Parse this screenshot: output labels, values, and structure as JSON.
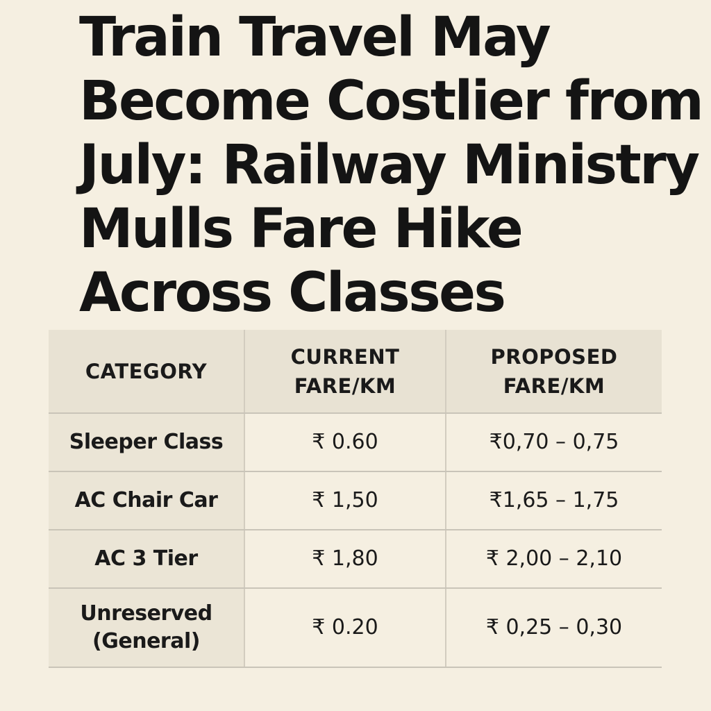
{
  "headline": {
    "lines": [
      "Train Travel May",
      "Become Costlier from",
      "July: Railway Ministry",
      "Mulls Fare Hike",
      "Across Classes"
    ]
  },
  "table": {
    "headers": [
      {
        "lines": [
          "CATEGORY"
        ]
      },
      {
        "lines": [
          "CURRENT",
          "FARE/KM"
        ]
      },
      {
        "lines": [
          "PROPOSED",
          "FARE/KM"
        ]
      }
    ],
    "rows": [
      {
        "category": [
          "Sleeper Class"
        ],
        "current": "₹ 0.60",
        "proposed": "₹0,70 – 0,75"
      },
      {
        "category": [
          "AC Chair Car"
        ],
        "current": "₹ 1,50",
        "proposed": "₹1,65 – 1,75"
      },
      {
        "category": [
          "AC 3 Tier"
        ],
        "current": "₹ 1,80",
        "proposed": "₹ 2,00 – 2,10"
      },
      {
        "category": [
          "Unreserved",
          "(General)"
        ],
        "current": "₹ 0.20",
        "proposed": "₹ 0,25 – 0,30"
      }
    ]
  },
  "colors": {
    "background": "#f5efe1",
    "header_bg": "#e8e2d3",
    "category_bg": "#ebe5d6",
    "text": "#141414",
    "border": "#c9c4b8"
  }
}
